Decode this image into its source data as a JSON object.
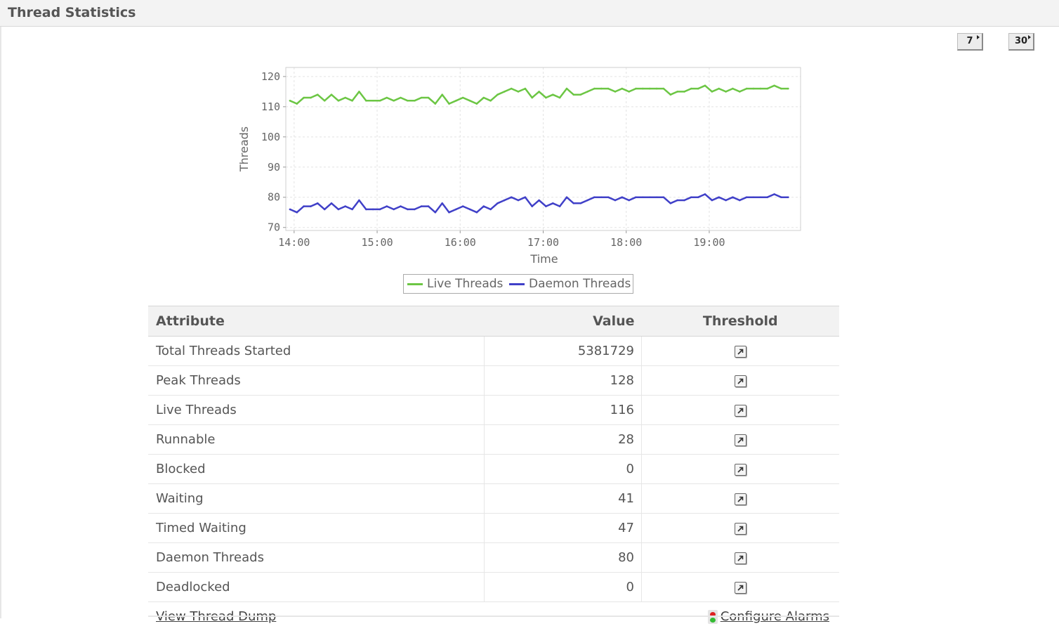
{
  "header": {
    "title": "Thread Statistics"
  },
  "period_buttons": [
    {
      "label": "7"
    },
    {
      "label": "30"
    }
  ],
  "chart_data": {
    "type": "line",
    "xlabel": "Time",
    "ylabel": "Threads",
    "ylim": [
      70,
      120
    ],
    "yticks": [
      "70",
      "80",
      "90",
      "100",
      "110",
      "120"
    ],
    "xticks": [
      "14:00",
      "15:00",
      "16:00",
      "17:00",
      "18:00",
      "19:00"
    ],
    "xlim": [
      "13:57",
      "19:57"
    ],
    "grid": true,
    "legend": "bottom",
    "x": [
      "13:57",
      "14:02",
      "14:07",
      "14:12",
      "14:17",
      "14:22",
      "14:27",
      "14:32",
      "14:37",
      "14:42",
      "14:47",
      "14:52",
      "14:57",
      "15:02",
      "15:07",
      "15:12",
      "15:17",
      "15:22",
      "15:27",
      "15:32",
      "15:37",
      "15:42",
      "15:47",
      "15:52",
      "15:57",
      "16:02",
      "16:07",
      "16:12",
      "16:17",
      "16:22",
      "16:27",
      "16:32",
      "16:37",
      "16:42",
      "16:47",
      "16:52",
      "16:57",
      "17:02",
      "17:07",
      "17:12",
      "17:17",
      "17:22",
      "17:27",
      "17:32",
      "17:37",
      "17:42",
      "17:47",
      "17:52",
      "17:57",
      "18:02",
      "18:07",
      "18:12",
      "18:17",
      "18:22",
      "18:27",
      "18:32",
      "18:37",
      "18:42",
      "18:47",
      "18:52",
      "18:57",
      "19:02",
      "19:07",
      "19:12",
      "19:17",
      "19:22",
      "19:27",
      "19:32",
      "19:37",
      "19:42",
      "19:47",
      "19:52",
      "19:57"
    ],
    "series": [
      {
        "name": "Live Threads",
        "color": "#6cc644",
        "values": [
          112,
          111,
          113,
          113,
          114,
          112,
          114,
          112,
          113,
          112,
          115,
          112,
          112,
          112,
          113,
          112,
          113,
          112,
          112,
          113,
          113,
          111,
          114,
          111,
          112,
          113,
          112,
          111,
          113,
          112,
          114,
          115,
          116,
          115,
          116,
          113,
          115,
          113,
          114,
          113,
          116,
          114,
          114,
          115,
          116,
          116,
          116,
          115,
          116,
          115,
          116,
          116,
          116,
          116,
          116,
          114,
          115,
          115,
          116,
          116,
          117,
          115,
          116,
          115,
          116,
          115,
          116,
          116,
          116,
          116,
          117,
          116,
          116
        ]
      },
      {
        "name": "Daemon Threads",
        "color": "#4040c8",
        "values": [
          76,
          75,
          77,
          77,
          78,
          76,
          78,
          76,
          77,
          76,
          79,
          76,
          76,
          76,
          77,
          76,
          77,
          76,
          76,
          77,
          77,
          75,
          78,
          75,
          76,
          77,
          76,
          75,
          77,
          76,
          78,
          79,
          80,
          79,
          80,
          77,
          79,
          77,
          78,
          77,
          80,
          78,
          78,
          79,
          80,
          80,
          80,
          79,
          80,
          79,
          80,
          80,
          80,
          80,
          80,
          78,
          79,
          79,
          80,
          80,
          81,
          79,
          80,
          79,
          80,
          79,
          80,
          80,
          80,
          80,
          81,
          80,
          80
        ]
      }
    ]
  },
  "table": {
    "headers": {
      "attribute": "Attribute",
      "value": "Value",
      "threshold": "Threshold"
    },
    "rows": [
      {
        "attribute": "Total Threads Started",
        "value": "5381729"
      },
      {
        "attribute": "Peak Threads",
        "value": "128"
      },
      {
        "attribute": "Live Threads",
        "value": "116"
      },
      {
        "attribute": "Runnable",
        "value": "28"
      },
      {
        "attribute": "Blocked",
        "value": "0"
      },
      {
        "attribute": "Waiting",
        "value": "41"
      },
      {
        "attribute": "Timed Waiting",
        "value": "47"
      },
      {
        "attribute": "Daemon Threads",
        "value": "80"
      },
      {
        "attribute": "Deadlocked",
        "value": "0"
      }
    ],
    "footer": {
      "thread_dump_link": "View Thread Dump",
      "configure_alarms_link": "Configure Alarms"
    }
  }
}
